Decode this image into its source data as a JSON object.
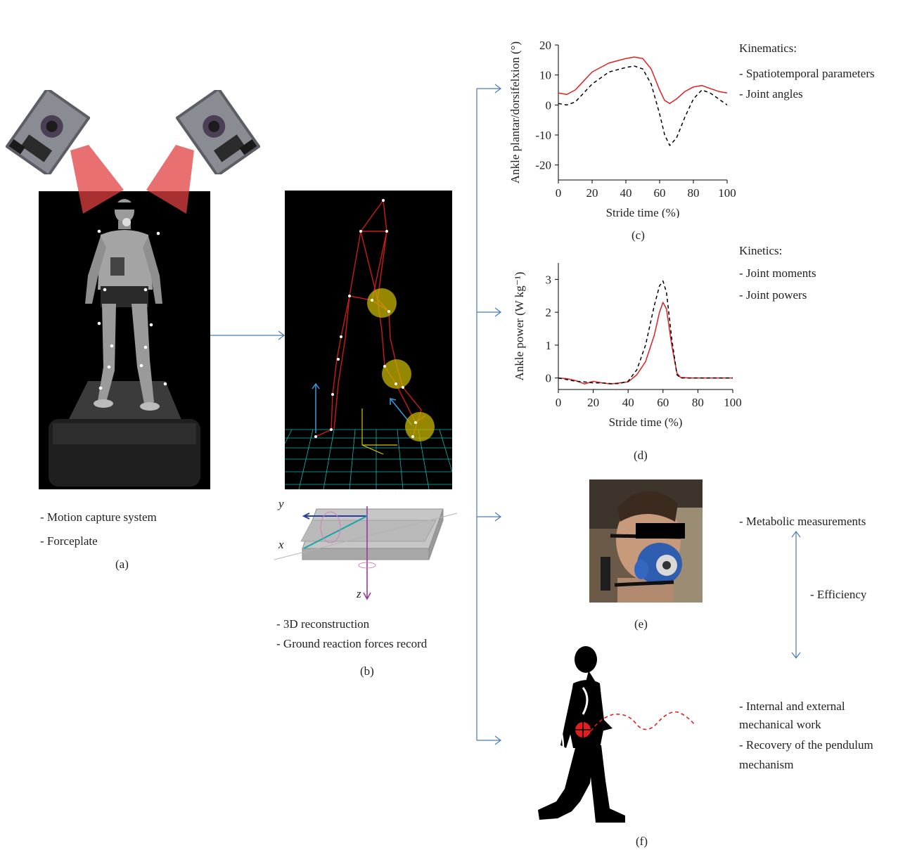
{
  "panel_a": {
    "bullets": [
      "- Motion capture system",
      "- Forceplate"
    ],
    "caption": "(a)"
  },
  "panel_b": {
    "bullets": [
      "- 3D reconstruction",
      "- Ground reaction forces record"
    ],
    "caption": "(b)",
    "axes": {
      "x": "x",
      "y": "y",
      "z": "z"
    }
  },
  "panel_c": {
    "caption": "(c)",
    "heading": "Kinematics:",
    "bullets": [
      "- Spatiotemporal parameters",
      "- Joint angles"
    ]
  },
  "panel_d": {
    "caption": "(d)",
    "heading": "Kinetics:",
    "bullets": [
      "- Joint moments",
      "- Joint powers"
    ]
  },
  "panel_e": {
    "caption": "(e)",
    "bullets": [
      "- Metabolic measurements"
    ],
    "link_label": "- Efficiency"
  },
  "panel_f": {
    "caption": "(f)",
    "bullets": [
      "- Internal and external",
      "mechanical work",
      "- Recovery of the pendulum",
      "mechanism"
    ]
  },
  "colors": {
    "arrow": "#4a7ab5",
    "red_series": "#e02020",
    "dashed_series": "#000000",
    "skeleton": "#cc1a1a",
    "joint_highlight": "#c8b400",
    "ground_grid": "#13b5b5"
  },
  "chart_data": [
    {
      "type": "line",
      "ylabel": "Ankle plantar/dorsifelxion (°)",
      "xlabel": "Stride time (%)",
      "xlim": [
        0,
        100
      ],
      "ylim": [
        -25,
        20
      ],
      "xticks": [
        0,
        20,
        40,
        60,
        80,
        100
      ],
      "yticks": [
        20,
        10,
        0,
        -10,
        -20
      ],
      "x": [
        0,
        5,
        10,
        15,
        20,
        30,
        40,
        45,
        50,
        55,
        60,
        63,
        66,
        70,
        75,
        80,
        85,
        90,
        95,
        100
      ],
      "series": [
        {
          "style": "solid",
          "color": "red",
          "values": [
            4,
            3.5,
            5,
            8,
            11,
            14,
            15.5,
            16,
            15.5,
            12,
            5,
            1.5,
            0.5,
            2,
            4.5,
            6,
            6.5,
            5.5,
            4.5,
            4
          ]
        },
        {
          "style": "dashed",
          "color": "black",
          "values": [
            0.5,
            0,
            1,
            4,
            7,
            11,
            12.5,
            13,
            12,
            7,
            -3,
            -10,
            -13.5,
            -11,
            -4,
            2,
            5,
            4,
            2,
            0
          ]
        }
      ]
    },
    {
      "type": "line",
      "ylabel": "Ankle power (W kg⁻¹)",
      "xlabel": "Stride time (%)",
      "xlim": [
        0,
        100
      ],
      "ylim": [
        -0.35,
        3.5
      ],
      "xticks": [
        0,
        20,
        40,
        60,
        80,
        100
      ],
      "yticks": [
        3,
        2,
        1,
        0
      ],
      "x": [
        0,
        5,
        10,
        15,
        20,
        25,
        30,
        35,
        40,
        45,
        50,
        55,
        58,
        60,
        62,
        65,
        68,
        70,
        75,
        80,
        90,
        100
      ],
      "series": [
        {
          "style": "solid",
          "color": "red",
          "values": [
            0,
            -0.02,
            -0.08,
            -0.18,
            -0.1,
            -0.15,
            -0.18,
            -0.15,
            -0.12,
            0.1,
            0.5,
            1.3,
            2.0,
            2.3,
            2.1,
            1.0,
            0.15,
            0.02,
            0,
            0,
            0,
            0
          ]
        },
        {
          "style": "dashed",
          "color": "black",
          "values": [
            0,
            -0.05,
            -0.1,
            -0.12,
            -0.15,
            -0.15,
            -0.17,
            -0.17,
            -0.1,
            0.25,
            1.0,
            2.2,
            2.8,
            2.95,
            2.6,
            1.2,
            0.1,
            0,
            0,
            0,
            0,
            0
          ]
        }
      ]
    }
  ]
}
